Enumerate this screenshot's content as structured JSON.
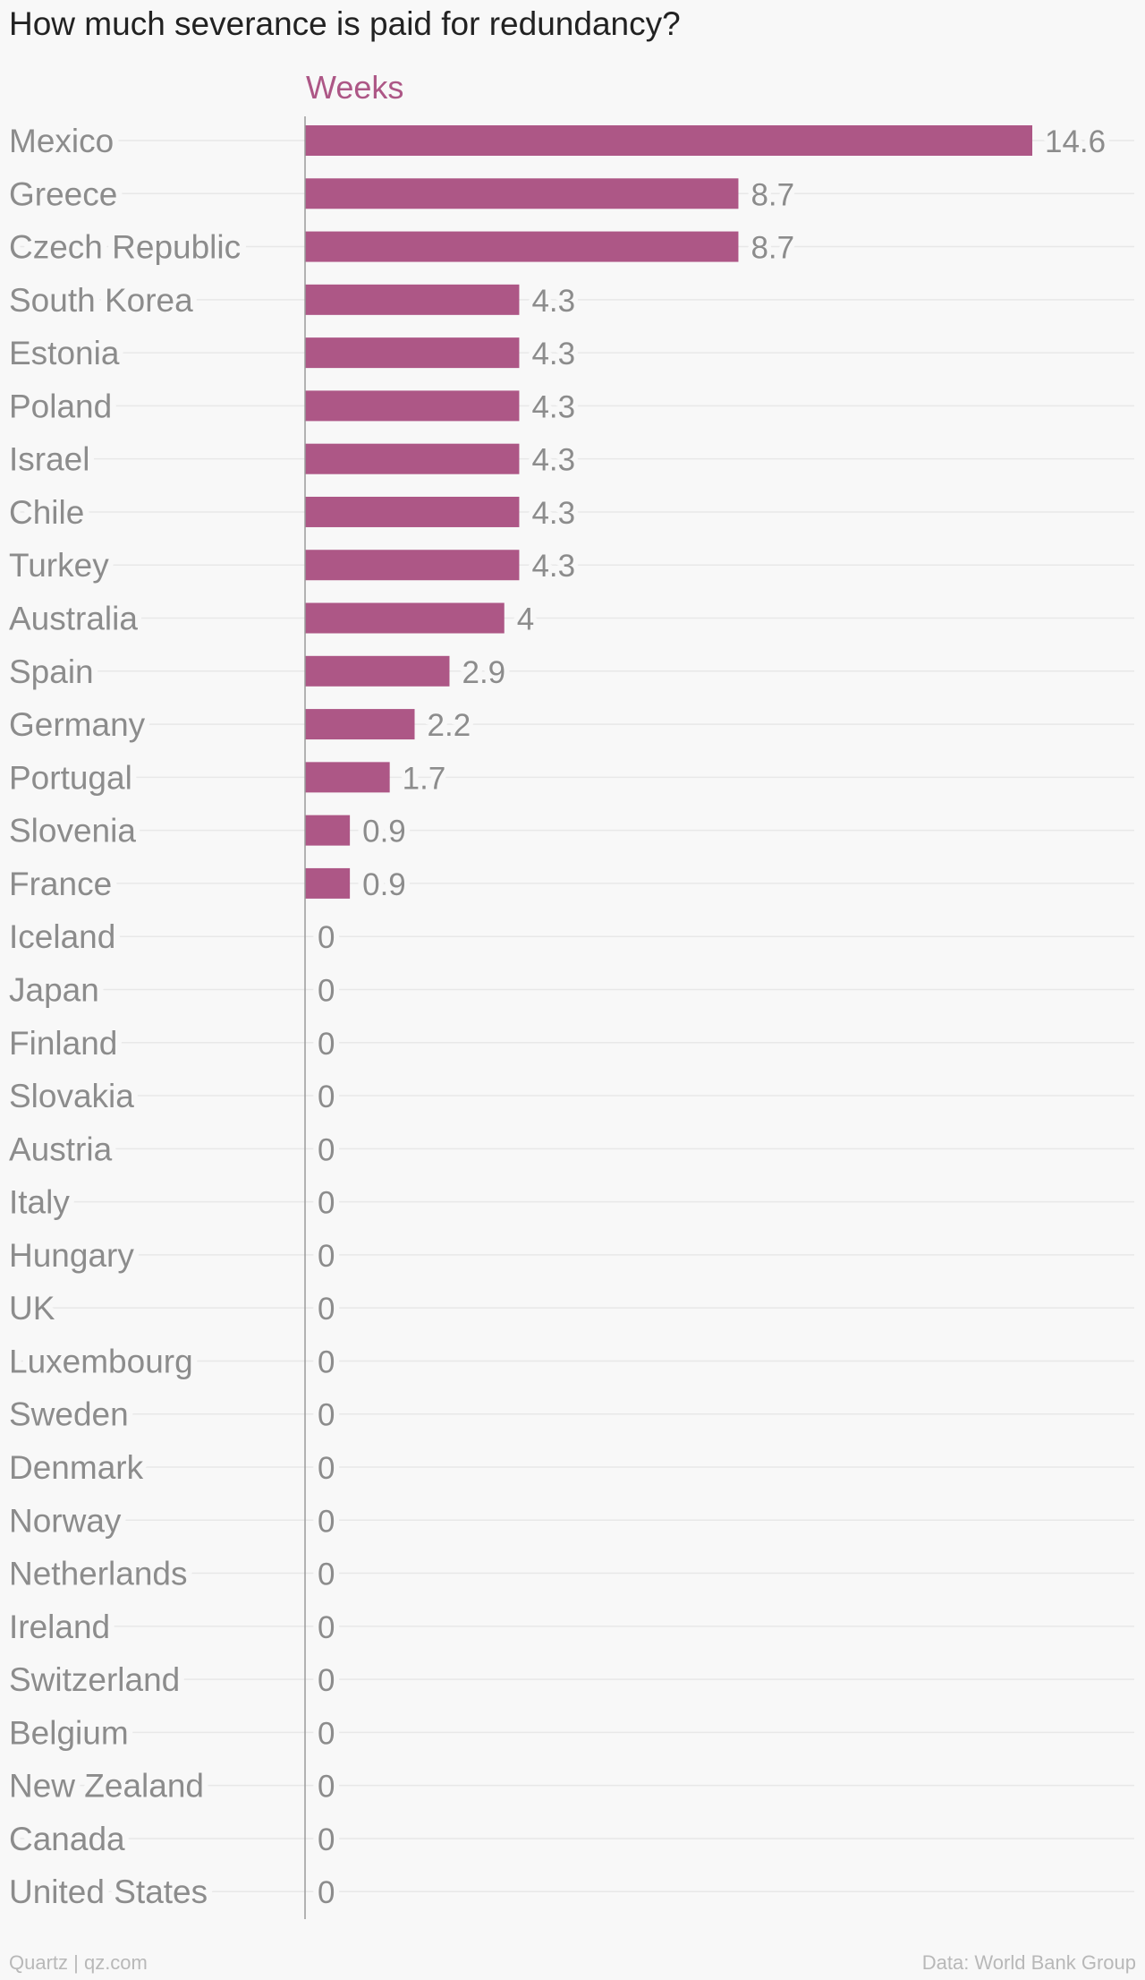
{
  "chart_data": {
    "type": "bar",
    "orientation": "horizontal",
    "title": "How much severance is paid for redundancy?",
    "xlabel": "Weeks",
    "ylabel": "",
    "xlim": [
      0,
      14.6
    ],
    "grid": true,
    "categories": [
      "Mexico",
      "Greece",
      "Czech Republic",
      "South Korea",
      "Estonia",
      "Poland",
      "Israel",
      "Chile",
      "Turkey",
      "Australia",
      "Spain",
      "Germany",
      "Portugal",
      "Slovenia",
      "France",
      "Iceland",
      "Japan",
      "Finland",
      "Slovakia",
      "Austria",
      "Italy",
      "Hungary",
      "UK",
      "Luxembourg",
      "Sweden",
      "Denmark",
      "Norway",
      "Netherlands",
      "Ireland",
      "Switzerland",
      "Belgium",
      "New Zealand",
      "Canada",
      "United States"
    ],
    "values": [
      14.6,
      8.7,
      8.7,
      4.3,
      4.3,
      4.3,
      4.3,
      4.3,
      4.3,
      4,
      2.9,
      2.2,
      1.7,
      0.9,
      0.9,
      0,
      0,
      0,
      0,
      0,
      0,
      0,
      0,
      0,
      0,
      0,
      0,
      0,
      0,
      0,
      0,
      0,
      0,
      0
    ],
    "value_labels": [
      "14.6",
      "8.7",
      "8.7",
      "4.3",
      "4.3",
      "4.3",
      "4.3",
      "4.3",
      "4.3",
      "4",
      "2.9",
      "2.2",
      "1.7",
      "0.9",
      "0.9",
      "0",
      "0",
      "0",
      "0",
      "0",
      "0",
      "0",
      "0",
      "0",
      "0",
      "0",
      "0",
      "0",
      "0",
      "0",
      "0",
      "0",
      "0",
      "0"
    ]
  },
  "colors": {
    "bar": "#ad5786",
    "axis_label": "#ad5786",
    "category_text": "#8c8c8c",
    "value_text": "#8c8c8c",
    "grid": "#e8e8e8",
    "axis_line": "#9a9a9a"
  },
  "footer": {
    "left": "Quartz | qz.com",
    "right": "Data: World Bank Group"
  }
}
